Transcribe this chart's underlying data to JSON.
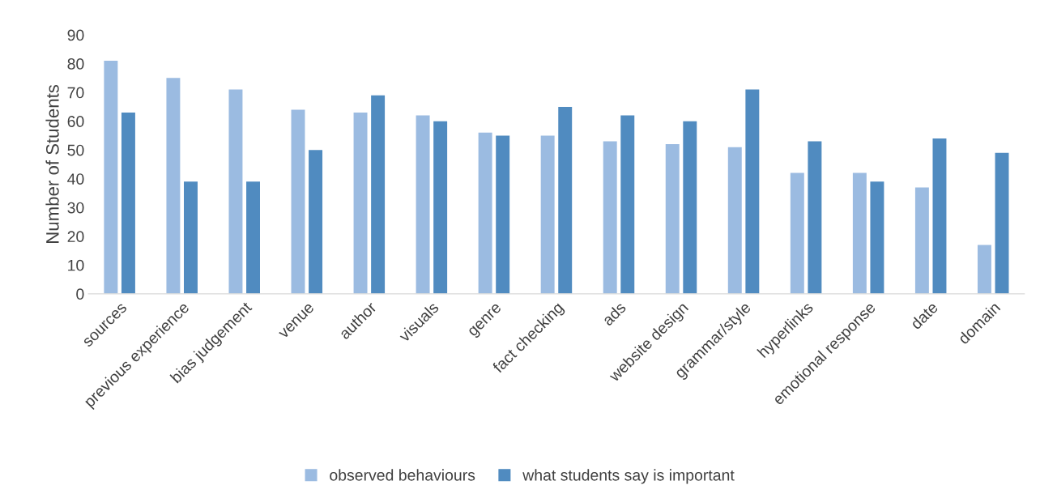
{
  "chart_data": {
    "type": "bar",
    "ylabel": "Number of Students",
    "categories": [
      "sources",
      "previous experience",
      "bias judgement",
      "venue",
      "author",
      "visuals",
      "genre",
      "fact checking",
      "ads",
      "website design",
      "grammar/style",
      "hyperlinks",
      "emotional response",
      "date",
      "domain"
    ],
    "series": [
      {
        "name": "observed behaviours",
        "color": "#9bbbe1",
        "values": [
          81,
          75,
          71,
          64,
          63,
          62,
          56,
          55,
          53,
          52,
          51,
          42,
          42,
          37,
          17
        ]
      },
      {
        "name": "what students say is important",
        "color": "#508bc0",
        "values": [
          63,
          39,
          39,
          50,
          69,
          60,
          55,
          65,
          62,
          60,
          71,
          53,
          39,
          54,
          49
        ]
      }
    ],
    "ylim": [
      0,
      90
    ],
    "yticks": [
      0,
      10,
      20,
      30,
      40,
      50,
      60,
      70,
      80,
      90
    ],
    "grid": false,
    "legend": "bottom"
  }
}
